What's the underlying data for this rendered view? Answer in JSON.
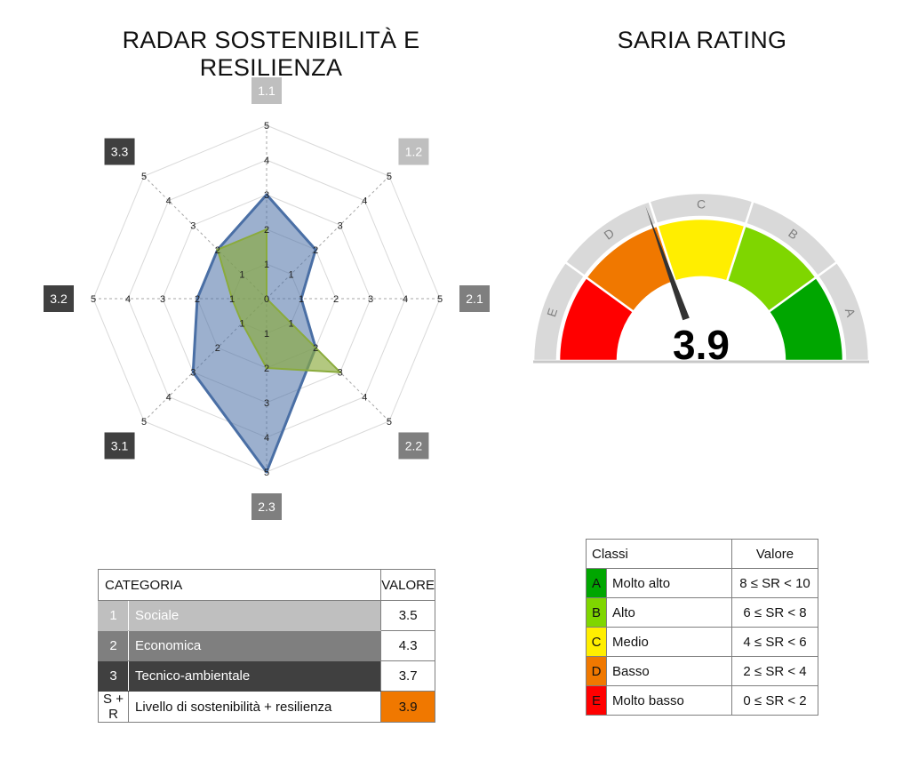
{
  "radar_title": "RADAR SOSTENIBILITÀ E RESILIENZA",
  "gauge_title": "SARIA RATING",
  "colors": {
    "sociale": "#bfbfbf",
    "economica": "#7f7f7f",
    "tecnico": "#404040",
    "series_blue": "#4a6fa5",
    "series_green": "#8aab3c",
    "class_A": "#00a600",
    "class_B": "#7fd600",
    "class_C": "#ffee00",
    "class_D": "#f07800",
    "class_E": "#ff0000",
    "sr_highlight": "#f07800"
  },
  "chart_data": [
    {
      "type": "radar",
      "title": "RADAR SOSTENIBILITÀ E RESILIENZA",
      "axes": [
        "1.1",
        "1.2",
        "2.1",
        "2.2",
        "2.3",
        "3.1",
        "3.2",
        "3.3"
      ],
      "axis_groups": [
        "1",
        "1",
        "2",
        "2",
        "2",
        "3",
        "3",
        "3"
      ],
      "range": [
        0,
        5
      ],
      "ticks": [
        0,
        1,
        2,
        3,
        4,
        5
      ],
      "series": [
        {
          "values": [
            3,
            2,
            1,
            2,
            5,
            3,
            2,
            2
          ],
          "color": "#4a6fa5"
        },
        {
          "values": [
            2,
            0,
            0,
            3,
            2,
            1,
            1,
            2
          ],
          "color": "#8aab3c"
        }
      ],
      "grid": true,
      "legend": "none"
    },
    {
      "type": "gauge",
      "title": "SARIA RATING",
      "value": 3.9,
      "value_label": "3.9",
      "range": [
        0,
        10
      ],
      "bands": [
        {
          "label": "E",
          "from": 0,
          "to": 2,
          "color": "#ff0000"
        },
        {
          "label": "D",
          "from": 2,
          "to": 4,
          "color": "#f07800"
        },
        {
          "label": "C",
          "from": 4,
          "to": 6,
          "color": "#ffee00"
        },
        {
          "label": "B",
          "from": 6,
          "to": 8,
          "color": "#7fd600"
        },
        {
          "label": "A",
          "from": 8,
          "to": 10,
          "color": "#00a600"
        }
      ]
    }
  ],
  "category_table": {
    "header": {
      "category": "CATEGORIA",
      "value": "VALORE"
    },
    "rows": [
      {
        "num": "1",
        "label": "Sociale",
        "value": "3.5"
      },
      {
        "num": "2",
        "label": "Economica",
        "value": "4.3"
      },
      {
        "num": "3",
        "label": "Tecnico-ambientale",
        "value": "3.7"
      },
      {
        "num": "S + R",
        "label": "Livello di sostenibilità + resilienza",
        "value": "3.9"
      }
    ]
  },
  "classes_table": {
    "header": {
      "classes": "Classi",
      "value": "Valore"
    },
    "rows": [
      {
        "letter": "A",
        "label": "Molto alto",
        "range": "8 ≤ SR < 10"
      },
      {
        "letter": "B",
        "label": "Alto",
        "range": "6 ≤ SR < 8"
      },
      {
        "letter": "C",
        "label": "Medio",
        "range": "4 ≤ SR < 6"
      },
      {
        "letter": "D",
        "label": "Basso",
        "range": "2 ≤ SR < 4"
      },
      {
        "letter": "E",
        "label": "Molto basso",
        "range": "0 ≤ SR < 2"
      }
    ]
  }
}
